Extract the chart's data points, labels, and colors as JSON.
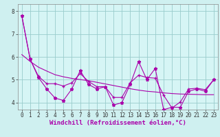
{
  "title": "",
  "xlabel": "Windchill (Refroidissement éolien,°C)",
  "ylabel": "",
  "background_color": "#cff0f0",
  "plot_bg_color": "#d6f5f5",
  "line_color": "#aa00aa",
  "grid_color": "#99cccc",
  "xlim": [
    -0.5,
    23.5
  ],
  "ylim": [
    3.7,
    8.3
  ],
  "yticks": [
    4,
    5,
    6,
    7,
    8
  ],
  "xticks": [
    0,
    1,
    2,
    3,
    4,
    5,
    6,
    7,
    8,
    9,
    10,
    11,
    12,
    13,
    14,
    15,
    16,
    17,
    18,
    19,
    20,
    21,
    22,
    23
  ],
  "x": [
    0,
    1,
    2,
    3,
    4,
    5,
    6,
    7,
    8,
    9,
    10,
    11,
    12,
    13,
    14,
    15,
    16,
    17,
    18,
    19,
    20,
    21,
    22,
    23
  ],
  "y_raw": [
    7.8,
    5.9,
    5.1,
    4.6,
    4.2,
    4.1,
    4.6,
    5.4,
    4.8,
    4.6,
    4.7,
    3.9,
    4.0,
    4.8,
    5.8,
    5.0,
    5.5,
    3.7,
    3.8,
    3.8,
    4.5,
    4.6,
    4.5,
    5.0
  ],
  "y_smooth": [
    7.8,
    5.9,
    5.15,
    4.83,
    4.83,
    4.73,
    4.87,
    5.27,
    4.93,
    4.7,
    4.7,
    4.23,
    4.23,
    4.87,
    5.2,
    5.1,
    5.07,
    4.33,
    3.77,
    4.03,
    4.6,
    4.63,
    4.57,
    5.0
  ],
  "y_trend": [
    6.1,
    5.8,
    5.55,
    5.38,
    5.22,
    5.13,
    5.06,
    5.01,
    4.96,
    4.89,
    4.82,
    4.75,
    4.68,
    4.61,
    4.55,
    4.5,
    4.47,
    4.43,
    4.4,
    4.38,
    4.37,
    4.36,
    4.35,
    4.35
  ],
  "label_fontsize": 6.5,
  "tick_fontsize": 5.5
}
